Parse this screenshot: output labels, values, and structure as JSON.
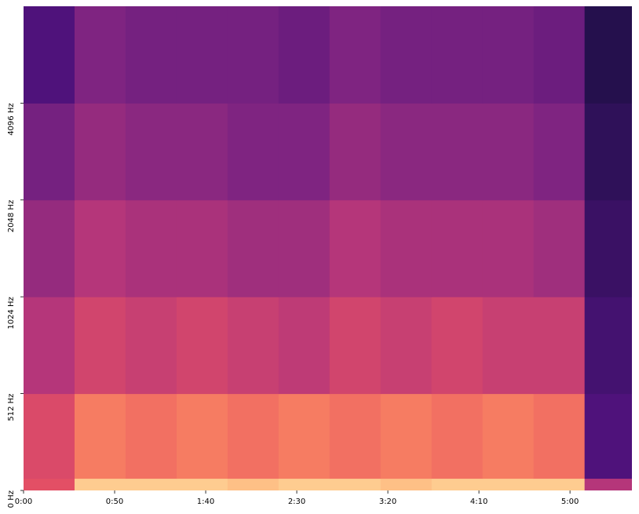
{
  "chart_data": {
    "type": "spectrogram",
    "xbins": [
      0,
      28,
      56,
      84,
      112,
      140,
      168,
      196,
      224,
      252,
      280,
      308,
      336
    ],
    "ybins": [
      0,
      64,
      512,
      1024,
      2048,
      4096,
      8192
    ],
    "values": [
      [
        -30,
        -8,
        -8,
        -8,
        -10,
        -8,
        -8,
        -10,
        -8,
        -8,
        -8,
        -40
      ],
      [
        -32,
        -22,
        -24,
        -22,
        -24,
        -22,
        -24,
        -22,
        -24,
        -22,
        -24,
        -60
      ],
      [
        -40,
        -34,
        -36,
        -34,
        -36,
        -38,
        -34,
        -36,
        -34,
        -36,
        -36,
        -62
      ],
      [
        -46,
        -40,
        -42,
        -42,
        -44,
        -44,
        -40,
        -42,
        -42,
        -42,
        -44,
        -64
      ],
      [
        -52,
        -46,
        -48,
        -48,
        -50,
        -50,
        -46,
        -48,
        -48,
        -48,
        -50,
        -66
      ],
      [
        -60,
        -50,
        -52,
        -52,
        -52,
        -54,
        -50,
        -52,
        -52,
        -52,
        -54,
        -68
      ]
    ],
    "colormap": "magma",
    "vlim": [
      -80,
      0
    ],
    "xlim": [
      0,
      334
    ],
    "xticks": [
      {
        "value": 0,
        "label": "0:00"
      },
      {
        "value": 50,
        "label": "0:50"
      },
      {
        "value": 100,
        "label": "1:40"
      },
      {
        "value": 150,
        "label": "2:30"
      },
      {
        "value": 200,
        "label": "3:20"
      },
      {
        "value": 250,
        "label": "4:10"
      },
      {
        "value": 300,
        "label": "5:00"
      }
    ],
    "ylim": [
      0,
      8192
    ],
    "yscale": "symlog",
    "yticks": [
      {
        "value": 0,
        "label": "0 Hz"
      },
      {
        "value": 512,
        "label": "512 Hz"
      },
      {
        "value": 1024,
        "label": "1024 Hz"
      },
      {
        "value": 2048,
        "label": "2048 Hz"
      },
      {
        "value": 4096,
        "label": "4096 Hz"
      }
    ]
  }
}
